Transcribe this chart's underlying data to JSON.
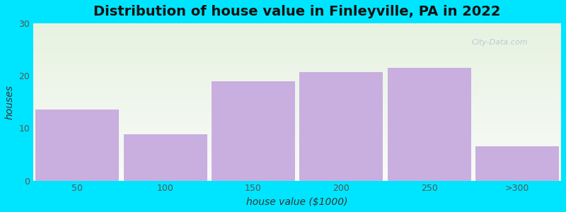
{
  "title": "Distribution of house value in Finleyville, PA in 2022",
  "xlabel": "house value ($1000)",
  "ylabel": "houses",
  "categories": [
    "50",
    "100",
    "150",
    "200",
    "250",
    ">300"
  ],
  "values": [
    13.5,
    8.8,
    19.0,
    20.7,
    21.5,
    6.5
  ],
  "bar_color": "#c9aee0",
  "background_outer": "#00e5ff",
  "background_grad_top": "#e6f2e0",
  "background_grad_bottom": "#f8faf8",
  "ylim": [
    0,
    30
  ],
  "yticks": [
    0,
    10,
    20,
    30
  ],
  "title_fontsize": 14,
  "label_fontsize": 10,
  "tick_fontsize": 9,
  "bar_width": 0.95,
  "figsize": [
    8.0,
    3.0
  ],
  "dpi": 100,
  "watermark": "City-Data.com",
  "watermark_color": "#b0c8d0",
  "tick_color": "#555555",
  "label_color": "#333333",
  "title_color": "#111111"
}
